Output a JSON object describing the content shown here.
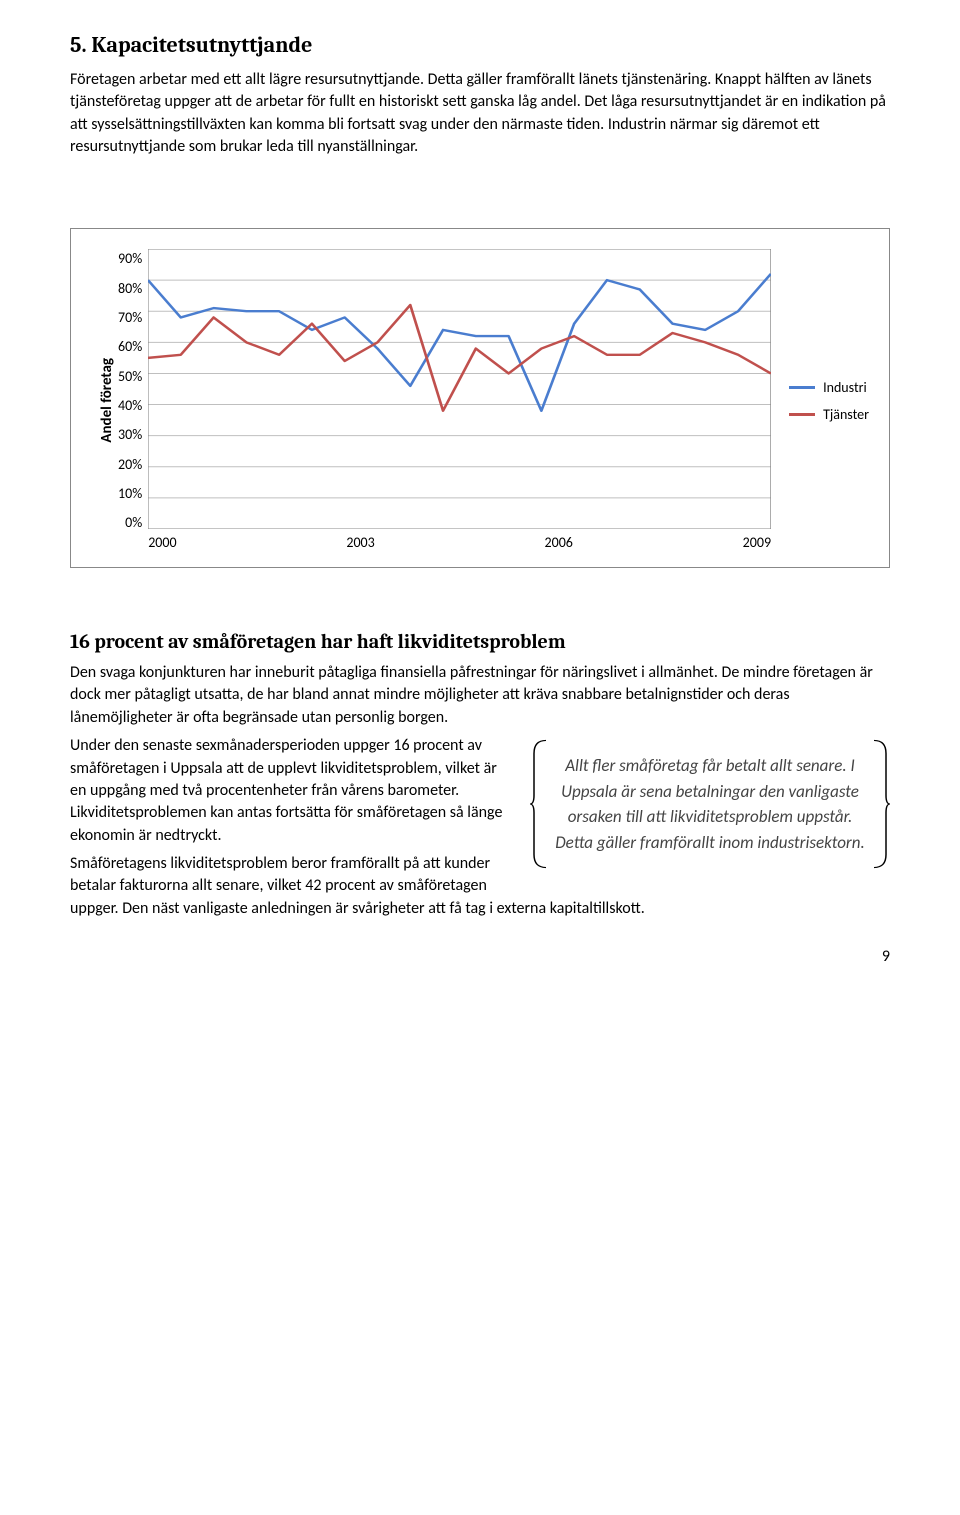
{
  "section": {
    "number": "5.",
    "title": "Kapacitetsutnyttjande"
  },
  "intro": "Företagen arbetar med ett allt lägre resursutnyttjande. Detta gäller framförallt länets tjänstenäring. Knappt hälften av länets tjänsteföretag uppger att de arbetar för fullt en historiskt sett ganska låg andel. Det låga resursutnyttjandet är en indikation på att sysselsättningstillväxten kan komma bli fortsatt svag under den närmaste tiden. Industrin närmar sig däremot ett resursutnyttjande som brukar leda till nyanställningar.",
  "chart": {
    "type": "line",
    "ylabel": "Andel företag",
    "yticks": [
      "90%",
      "80%",
      "70%",
      "60%",
      "50%",
      "40%",
      "30%",
      "20%",
      "10%",
      "0%"
    ],
    "ylim": [
      0,
      90
    ],
    "xticks": [
      "2000",
      "2003",
      "2006",
      "2009"
    ],
    "series": [
      {
        "name": "Industri",
        "label": "Industri",
        "color": "#4a7dcf",
        "values": [
          80,
          68,
          71,
          70,
          70,
          64,
          68,
          58,
          46,
          64,
          62,
          62,
          38,
          66,
          80,
          77,
          66,
          64,
          70,
          82
        ]
      },
      {
        "name": "Tjänster",
        "label": "Tjänster",
        "color": "#c0504d",
        "values": [
          55,
          56,
          68,
          60,
          56,
          66,
          54,
          60,
          72,
          38,
          58,
          50,
          58,
          62,
          56,
          56,
          63,
          60,
          56,
          50
        ]
      }
    ],
    "background": "#ffffff",
    "grid_color": "#bfbfbf",
    "line_width": 2.4
  },
  "sub": {
    "heading": "16 procent av småföretagen har haft likviditetsproblem",
    "p1": "Den svaga konjunkturen har inneburit påtagliga finansiella påfrestningar för näringslivet i allmänhet. De mindre företagen är dock mer påtagligt utsatta, de har bland annat mindre möjligheter att kräva snabbare betalnignstider och deras lånemöjligheter är ofta begränsade utan personlig borgen.",
    "p2": "Under den senaste sexmånadersperioden uppger 16 procent av småföretagen i Uppsala att de upplevt likviditetsproblem, vilket är en uppgång med två procentenheter från vårens barometer. Likviditetsproblemen kan antas fortsätta för småföretagen så länge ekonomin är nedtryckt.",
    "p3": "Småföretagens likviditetsproblem beror framförallt på att kunder betalar fakturorna allt senare, vilket 42 procent av småföretagen uppger. Den näst vanligaste anledningen är svårigheter att få tag i externa kapitaltillskott."
  },
  "callout": "Allt fler småföretag får betalt allt senare. I Uppsala är sena betalningar den vanligaste orsaken till att likviditetsproblem uppstår. Detta gäller framförallt inom industrisektorn.",
  "page": "9"
}
